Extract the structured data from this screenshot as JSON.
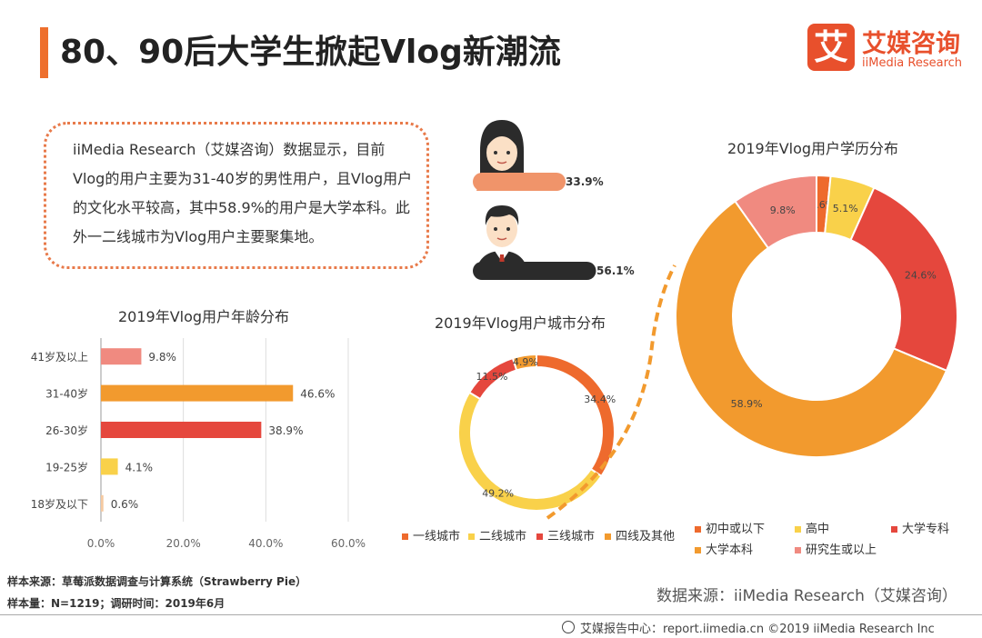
{
  "header": {
    "title": "80、90后大学生掀起Vlog新潮流",
    "logo_mark": "艾",
    "logo_name": "艾媒咨询",
    "logo_sub": "iiMedia Research"
  },
  "intro": {
    "text": "iiMedia Research（艾媒咨询）数据显示，目前Vlog的用户主要为31-40岁的男性用户，且Vlog用户的文化水平较高，其中58.9%的用户是大学本科。此外一二线城市为Vlog用户主要聚集地。"
  },
  "gender": {
    "female_label": "33.9%",
    "male_label": "56.1%",
    "female": 33.9,
    "male": 56.1,
    "colors": {
      "female": "#f0946a",
      "male": "#2b2b2b"
    }
  },
  "chart_data": [
    {
      "type": "bar",
      "title": "2019年Vlog用户年龄分布",
      "orientation": "horizontal",
      "categories": [
        "41岁及以上",
        "31-40岁",
        "26-30岁",
        "19-25岁",
        "18岁及以下"
      ],
      "values": [
        9.8,
        46.6,
        38.9,
        4.1,
        0.6
      ],
      "value_labels": [
        "9.8%",
        "46.6%",
        "38.9%",
        "4.1%",
        "0.6%"
      ],
      "colors": [
        "#f08a80",
        "#f29a2e",
        "#e5473d",
        "#f9d14a",
        "#f5c9a0"
      ],
      "xlim": [
        0,
        60
      ],
      "xticks": [
        "0.0%",
        "20.0%",
        "40.0%",
        "60.0%"
      ],
      "grid": true
    },
    {
      "type": "pie",
      "donut": true,
      "title": "2019年Vlog用户城市分布",
      "labels": [
        "一线城市",
        "二线城市",
        "三线城市",
        "四线及其他"
      ],
      "values": [
        34.4,
        49.2,
        11.5,
        4.9
      ],
      "value_labels": [
        "34.4%",
        "49.2%",
        "11.5%",
        "4.9%"
      ],
      "colors": [
        "#ee6a2d",
        "#f9d14a",
        "#e5473d",
        "#f29a2e"
      ],
      "legend": "bottom"
    },
    {
      "type": "pie",
      "donut": true,
      "title": "2019年Vlog用户学历分布",
      "labels": [
        "初中或以下",
        "高中",
        "大学专科",
        "大学本科",
        "研究生或以上"
      ],
      "values": [
        1.6,
        5.1,
        24.6,
        58.9,
        9.8
      ],
      "value_labels": [
        "1.6%",
        "5.1%",
        "24.6%",
        "58.9%",
        "9.8%"
      ],
      "colors": [
        "#ee6a2d",
        "#f9d14a",
        "#e5473d",
        "#f29a2e",
        "#f08a80"
      ],
      "legend": "bottom"
    }
  ],
  "notes": {
    "sample_source": "样本来源：草莓派数据调查与计算系统（Strawberry Pie）",
    "sample_size": "样本量：N=1219；调研时间：2019年6月"
  },
  "source": "数据来源：iiMedia Research（艾媒咨询）",
  "footer": "艾媒报告中心：report.iimedia.cn ©2019 iiMedia Research Inc"
}
